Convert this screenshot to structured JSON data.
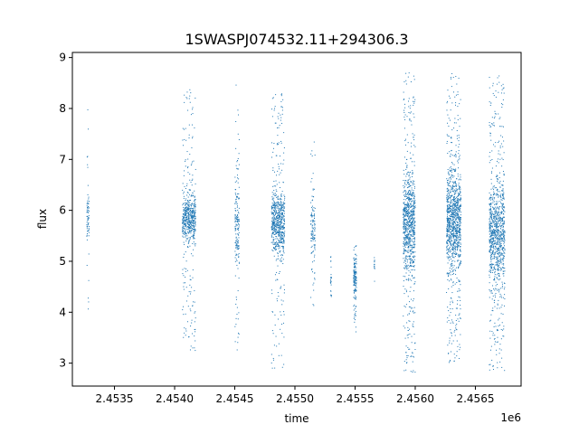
{
  "chart_data": {
    "type": "scatter",
    "title": "1SWASPJ074532.11+294306.3",
    "xlabel": "time",
    "ylabel": "flux",
    "x_offset_label": "1e6",
    "xlim": [
      2453150,
      2456880
    ],
    "ylim": [
      2.55,
      9.1
    ],
    "x_ticks": [
      2453500,
      2454000,
      2454500,
      2455000,
      2455500,
      2456000,
      2456500
    ],
    "x_tick_labels": [
      "2.4535",
      "2.4540",
      "2.4545",
      "2.4550",
      "2.4555",
      "2.4560",
      "2.4565"
    ],
    "y_ticks": [
      3,
      4,
      5,
      6,
      7,
      8,
      9
    ],
    "y_tick_labels": [
      "3",
      "4",
      "5",
      "6",
      "7",
      "8",
      "9"
    ],
    "grid": false,
    "marker_color": "#1f77b4",
    "clusters": [
      {
        "x_center": 2453280,
        "x_spread": 10,
        "y_center": 5.9,
        "y_spread": 0.45,
        "y_min": 3.9,
        "y_max": 8.0,
        "n": 70
      },
      {
        "x_center": 2454120,
        "x_spread": 55,
        "y_center": 5.85,
        "y_spread": 0.45,
        "y_min": 3.2,
        "y_max": 8.4,
        "n": 600
      },
      {
        "x_center": 2454520,
        "x_spread": 18,
        "y_center": 5.7,
        "y_spread": 0.7,
        "y_min": 3.1,
        "y_max": 8.5,
        "n": 180
      },
      {
        "x_center": 2454860,
        "x_spread": 55,
        "y_center": 5.75,
        "y_spread": 0.55,
        "y_min": 2.9,
        "y_max": 8.3,
        "n": 700
      },
      {
        "x_center": 2455150,
        "x_spread": 18,
        "y_center": 5.6,
        "y_spread": 0.7,
        "y_min": 4.1,
        "y_max": 7.5,
        "n": 120
      },
      {
        "x_center": 2455300,
        "x_spread": 4,
        "y_center": 4.6,
        "y_spread": 0.35,
        "y_min": 4.0,
        "y_max": 5.1,
        "n": 25
      },
      {
        "x_center": 2455500,
        "x_spread": 12,
        "y_center": 4.7,
        "y_spread": 0.35,
        "y_min": 3.6,
        "y_max": 5.4,
        "n": 150
      },
      {
        "x_center": 2455660,
        "x_spread": 4,
        "y_center": 4.9,
        "y_spread": 0.2,
        "y_min": 4.6,
        "y_max": 5.1,
        "n": 12
      },
      {
        "x_center": 2455950,
        "x_spread": 50,
        "y_center": 5.75,
        "y_spread": 0.9,
        "y_min": 2.8,
        "y_max": 8.7,
        "n": 900
      },
      {
        "x_center": 2456320,
        "x_spread": 60,
        "y_center": 5.75,
        "y_spread": 0.85,
        "y_min": 3.0,
        "y_max": 8.7,
        "n": 1100
      },
      {
        "x_center": 2456680,
        "x_spread": 65,
        "y_center": 5.6,
        "y_spread": 0.85,
        "y_min": 2.85,
        "y_max": 8.65,
        "n": 1000
      }
    ]
  }
}
